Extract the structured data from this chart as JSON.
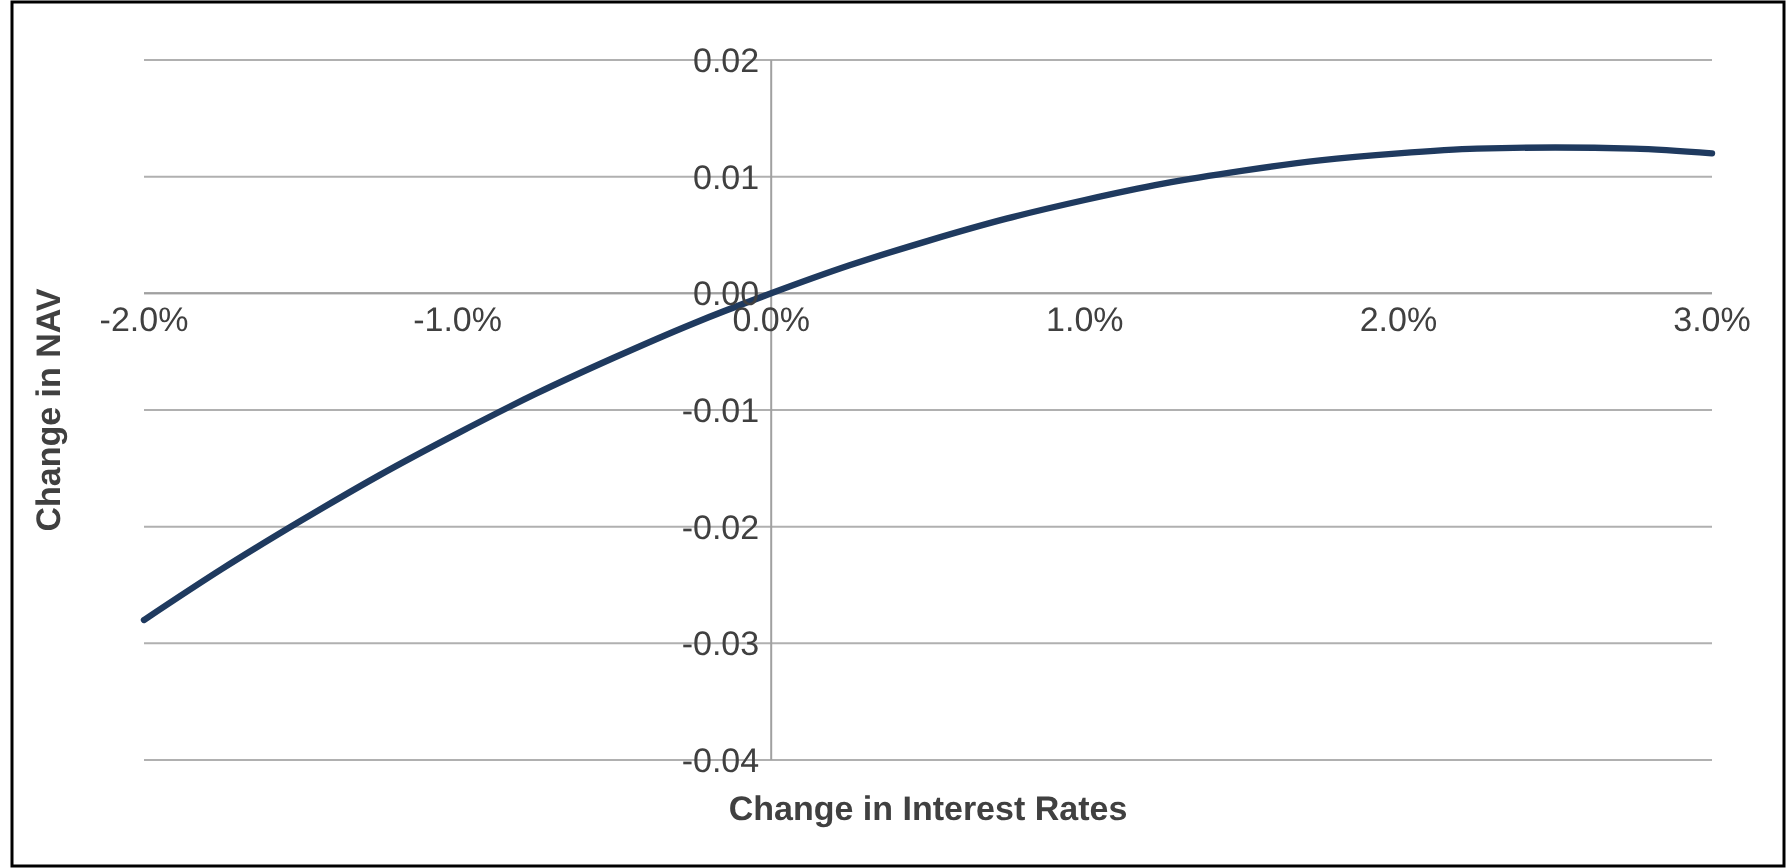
{
  "chart_data": {
    "type": "line",
    "xlabel": "Change in Interest Rates",
    "ylabel": "Change in NAV",
    "x": [
      -2,
      -1.75,
      -1.5,
      -1.25,
      -1,
      -0.75,
      -0.5,
      -0.25,
      0,
      0.25,
      0.5,
      0.75,
      1,
      1.25,
      1.5,
      1.75,
      2,
      2.25,
      2.5,
      2.75,
      3
    ],
    "series": [
      {
        "color": "#1f3a5f",
        "values": [
          -0.028,
          -0.0236,
          -0.0195,
          -0.0156,
          -0.012,
          -0.0086,
          -0.0055,
          -0.0026,
          0,
          0.0024,
          0.0045,
          0.0064,
          0.008,
          0.0094,
          0.0105,
          0.0114,
          0.012,
          0.0124,
          0.0125,
          0.0124,
          0.012
        ]
      }
    ],
    "xlim": [
      -2,
      3
    ],
    "xticks": [
      {
        "value": -2,
        "label": "-2.0%"
      },
      {
        "value": -1,
        "label": "-1.0%"
      },
      {
        "value": 0,
        "label": "0.0%"
      },
      {
        "value": 1,
        "label": "1.0%"
      },
      {
        "value": 2,
        "label": "2.0%"
      },
      {
        "value": 3,
        "label": "3.0%"
      }
    ],
    "ylim": [
      -0.04,
      0.02
    ],
    "yticks": [
      0.02,
      0.01,
      {
        "value": 0,
        "label": "0.00"
      },
      -0.01,
      -0.02,
      -0.03,
      -0.04
    ],
    "grid": "y",
    "marker": "none",
    "line_style": "solid"
  }
}
